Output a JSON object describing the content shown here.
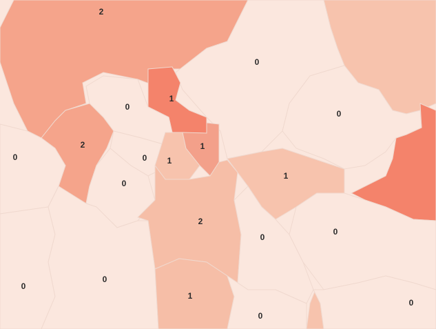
{
  "map": {
    "type": "choropleth",
    "colors": {
      "0": "#fbe7de",
      "1_light": "#f7c3ad",
      "1_mid": "#f3a08a",
      "1_dark": "#f4836b",
      "2_mid": "#f5a48b",
      "2_light": "#f6bea7",
      "border": "#f0d9cf"
    },
    "regions": [
      {
        "label": "2",
        "value": 2
      },
      {
        "label": "0",
        "value": 0
      },
      {
        "label": "1",
        "value": 1
      },
      {
        "label": "0",
        "value": 0
      },
      {
        "label": "0",
        "value": 0
      },
      {
        "label": "2",
        "value": 2
      },
      {
        "label": "0",
        "value": 0
      },
      {
        "label": "0",
        "value": 0
      },
      {
        "label": "1",
        "value": 1
      },
      {
        "label": "1",
        "value": 1
      },
      {
        "label": "1",
        "value": 1
      },
      {
        "label": "0",
        "value": 0
      },
      {
        "label": "2",
        "value": 2
      },
      {
        "label": "0",
        "value": 0
      },
      {
        "label": "0",
        "value": 0
      },
      {
        "label": "0",
        "value": 0
      },
      {
        "label": "0",
        "value": 0
      },
      {
        "label": "1",
        "value": 1
      },
      {
        "label": "0",
        "value": 0
      },
      {
        "label": "0",
        "value": 0
      }
    ]
  }
}
